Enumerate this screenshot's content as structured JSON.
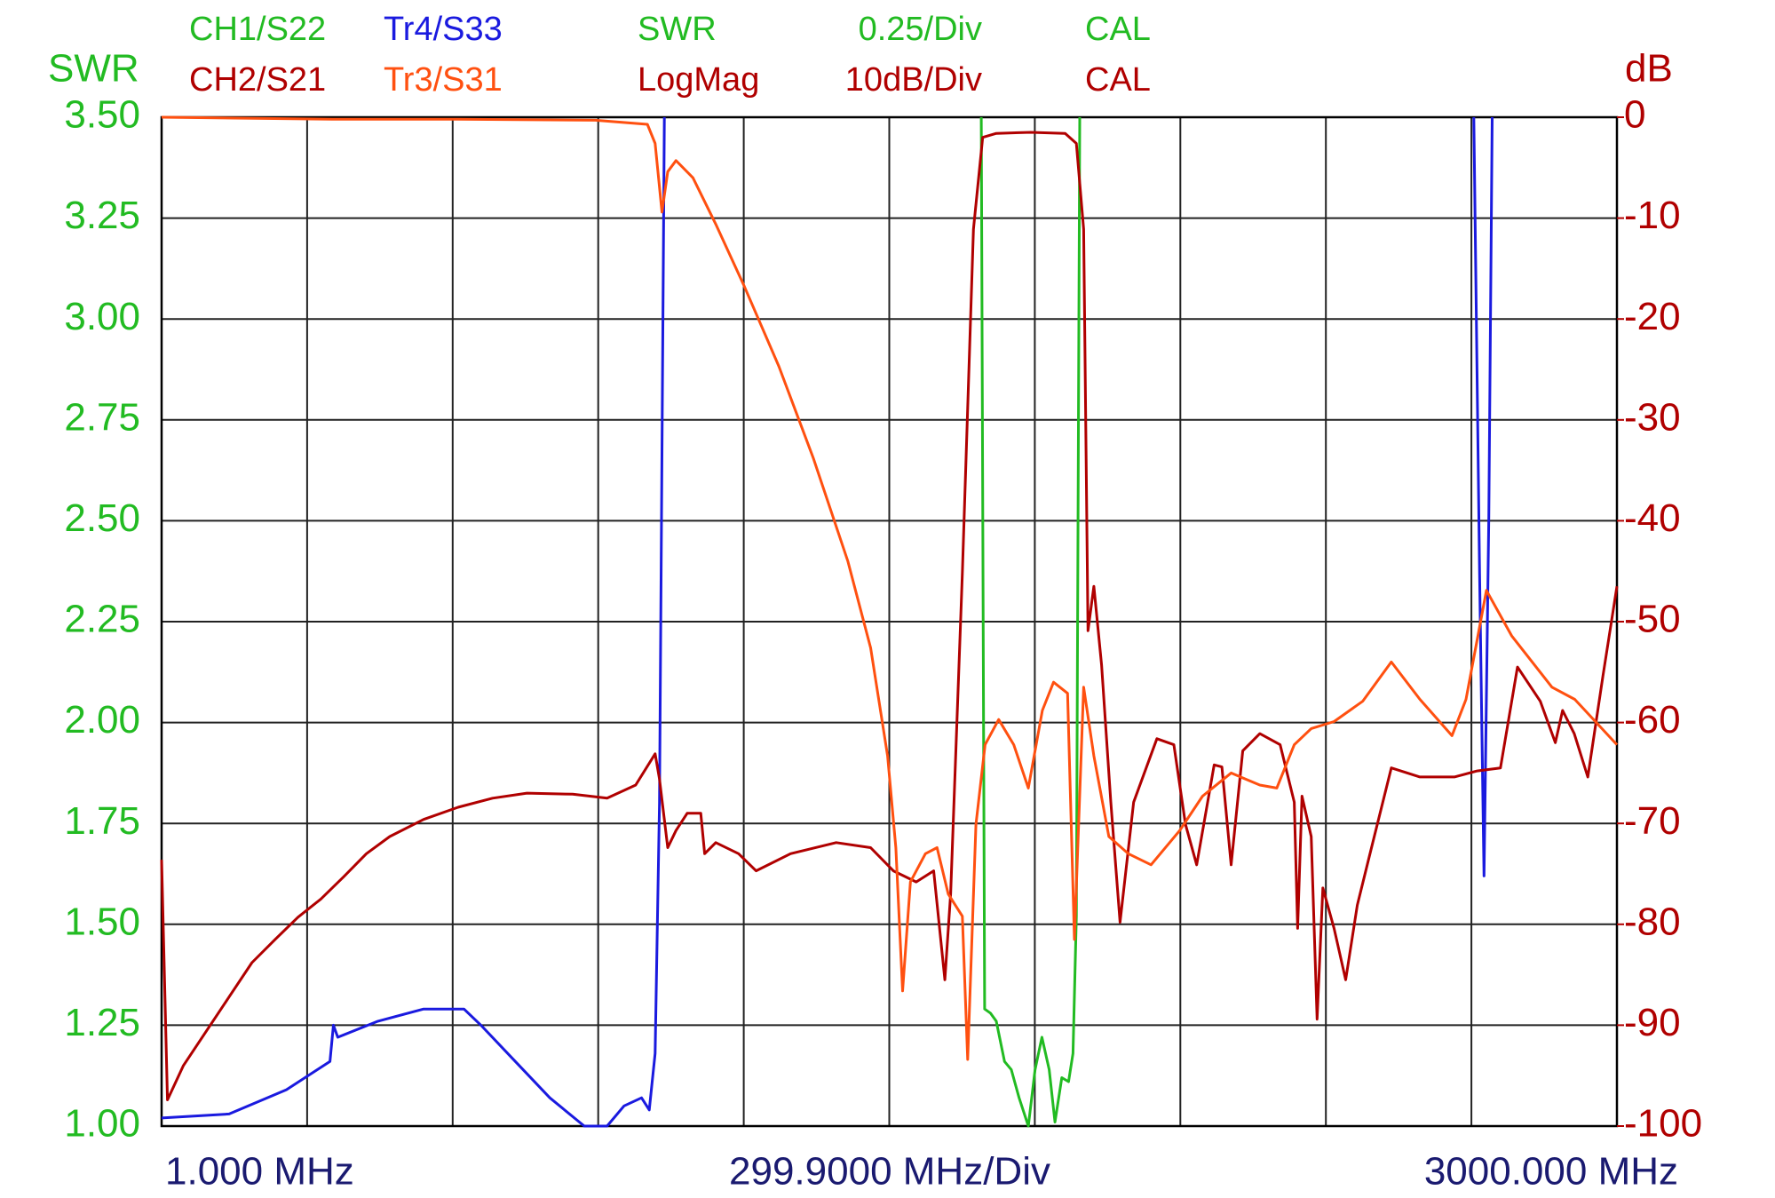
{
  "chart_data": {
    "type": "line",
    "ylabel": "SWR",
    "y2label": "dB",
    "x_start_label": "1.000 MHz",
    "x_scale_label": "299.9000 MHz/Div",
    "x_stop_label": "3000.000 MHz",
    "channel_settings": [
      {
        "format": "SWR",
        "scale": "0.25/Div",
        "cal": "CAL",
        "color": "#22bb22"
      },
      {
        "format": "LogMag",
        "scale": "10dB/Div",
        "cal": "CAL",
        "color": "#b00000"
      }
    ],
    "xlim": [
      1,
      3000
    ],
    "xticks": [
      1,
      300.9,
      600.8,
      900.7,
      1200.6,
      1500.5,
      1800.4,
      2100.3,
      2400.2,
      2700.1,
      3000
    ],
    "ylim": [
      1,
      3.5
    ],
    "yticks": [
      {
        "value": 1,
        "label": "1.00"
      },
      1.25,
      {
        "value": 1.5,
        "label": "1.50"
      },
      1.75,
      {
        "value": 2,
        "label": "2.00"
      },
      2.25,
      {
        "value": 2.5,
        "label": "2.50"
      },
      2.75,
      {
        "value": 3,
        "label": "3.00"
      },
      3.25,
      {
        "value": 3.5,
        "label": "3.50"
      }
    ],
    "y2lim": [
      -100,
      0
    ],
    "y2ticks": [
      -100,
      -90,
      -80,
      -70,
      -60,
      -50,
      -40,
      -30,
      -20,
      -10,
      0
    ],
    "grid": true,
    "series": [
      {
        "name": "CH1/S22",
        "color": "#22bb22",
        "axis": "y",
        "x": [
          1690,
          1697,
          1709,
          1721,
          1738,
          1752,
          1768,
          1787,
          1801,
          1815,
          1830,
          1842,
          1856,
          1870,
          1879,
          1886,
          1893
        ],
        "values": [
          3.5,
          1.29,
          1.28,
          1.26,
          1.16,
          1.14,
          1.07,
          1.0,
          1.14,
          1.22,
          1.14,
          1.01,
          1.12,
          1.11,
          1.18,
          1.52,
          3.5
        ]
      },
      {
        "name": "Tr4/S33",
        "color": "#1a1adf",
        "axis": "y",
        "x": [
          1,
          140,
          258,
          348,
          355,
          364,
          447,
          541,
          612,
          624,
          659,
          730,
          801,
          872,
          919,
          954,
          990,
          1006,
          1018,
          1027,
          1037,
          null,
          2705,
          2717,
          2726,
          2736,
          2743
        ],
        "values": [
          1.02,
          1.03,
          1.09,
          1.16,
          1.25,
          1.22,
          1.26,
          1.29,
          1.29,
          1.29,
          1.25,
          1.16,
          1.07,
          1.0,
          1.0,
          1.05,
          1.07,
          1.04,
          1.18,
          1.8,
          3.5,
          null,
          3.5,
          2.37,
          1.62,
          2.51,
          3.5
        ]
      },
      {
        "name": "CH2/S21",
        "color": "#b00000",
        "axis": "y2",
        "x": [
          1,
          13,
          46,
          93,
          140,
          187,
          235,
          282,
          329,
          376,
          423,
          471,
          541,
          612,
          683,
          754,
          848,
          919,
          978,
          1018,
          1027,
          1044,
          1061,
          1084,
          1112,
          1120,
          1143,
          1190,
          1226,
          1297,
          1391,
          1462,
          1509,
          1556,
          1592,
          1615,
          1627,
          1651,
          1674,
          1693,
          1721,
          1792,
          1863,
          1886,
          1901,
          1910,
          1922,
          1938,
          1957,
          1976,
          2004,
          2052,
          2087,
          2111,
          2134,
          2170,
          2186,
          2205,
          2229,
          2264,
          2306,
          2335,
          2342,
          2351,
          2370,
          2382,
          2394,
          2417,
          2441,
          2465,
          2488,
          2535,
          2594,
          2665,
          2712,
          2760,
          2795,
          2842,
          2873,
          2888,
          2912,
          2940,
          2971,
          3000
        ],
        "values": [
          -73.6,
          -97.4,
          -94,
          -90.6,
          -87.2,
          -83.8,
          -81.5,
          -79.3,
          -77.5,
          -75.3,
          -73,
          -71.3,
          -69.6,
          -68.4,
          -67.5,
          -67,
          -67.1,
          -67.5,
          -66.2,
          -63.1,
          -65.6,
          -72.4,
          -70.7,
          -69,
          -69,
          -73,
          -71.9,
          -73,
          -74.7,
          -73,
          -71.9,
          -72.4,
          -74.7,
          -75.8,
          -74.7,
          -85.5,
          -77,
          -45.2,
          -11.1,
          -2,
          -1.6,
          -1.5,
          -1.6,
          -2.6,
          -11.1,
          -50.9,
          -46.5,
          -54.3,
          -67.9,
          -79.8,
          -67.9,
          -61.6,
          -62.2,
          -70.1,
          -74.1,
          -64.2,
          -64.4,
          -74.1,
          -62.8,
          -61.1,
          -62.2,
          -67.9,
          -80.4,
          -67.3,
          -71.3,
          -89.4,
          -76.4,
          -80.4,
          -85.5,
          -78.1,
          -73.6,
          -64.5,
          -65.4,
          -65.4,
          -64.8,
          -64.5,
          -54.5,
          -57.9,
          -62,
          -58.8,
          -61.1,
          -65.4,
          -55.4,
          -46.5
        ]
      },
      {
        "name": "Tr3/S31",
        "color": "#ff5010",
        "axis": "y2",
        "x": [
          1,
          353,
          612,
          895,
          1002,
          1018,
          1032,
          1044,
          1061,
          1096,
          1143,
          1202,
          1273,
          1344,
          1415,
          1462,
          1497,
          1514,
          1528,
          1544,
          1575,
          1599,
          1622,
          1651,
          1662,
          1679,
          1698,
          1726,
          1757,
          1787,
          1816,
          1839,
          1868,
          1882,
          1901,
          1922,
          1953,
          1993,
          2040,
          2099,
          2146,
          2205,
          2264,
          2299,
          2335,
          2370,
          2417,
          2476,
          2535,
          2594,
          2660,
          2689,
          2731,
          2783,
          2866,
          2913,
          3000
        ],
        "values": [
          0,
          -0.2,
          -0.2,
          -0.3,
          -0.7,
          -2.6,
          -9.4,
          -5.4,
          -4.3,
          -6,
          -10.6,
          -16.8,
          -24.7,
          -33.8,
          -44,
          -52.6,
          -63.3,
          -72.4,
          -86.6,
          -75.8,
          -73,
          -72.4,
          -77,
          -79.2,
          -93.4,
          -70.1,
          -62.2,
          -59.7,
          -62.2,
          -66.5,
          -58.8,
          -56,
          -57.1,
          -81.5,
          -56.5,
          -63.3,
          -71.3,
          -73,
          -74.1,
          -70.7,
          -67.3,
          -65,
          -66.2,
          -66.5,
          -62.2,
          -60.6,
          -59.9,
          -57.9,
          -54,
          -57.7,
          -61.3,
          -57.7,
          -46.9,
          -51.4,
          -56.5,
          -57.7,
          -62.2
        ]
      }
    ]
  }
}
